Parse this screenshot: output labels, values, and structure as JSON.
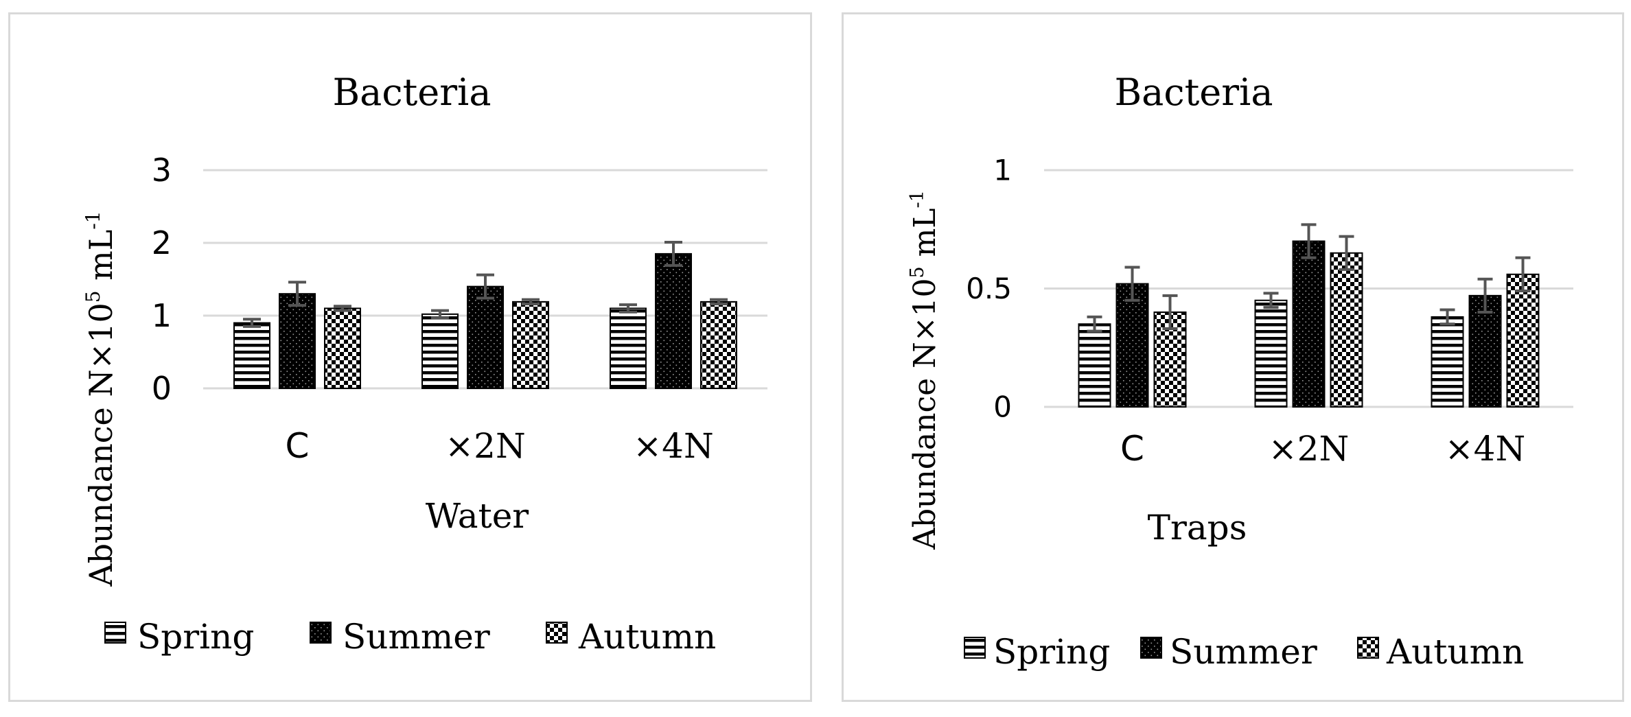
{
  "chart_data": [
    {
      "type": "bar",
      "title": "Bacteria",
      "xlabel": "Water",
      "ylabel": "Abundance N×10",
      "ylabel_sup_exp": "5",
      "ylabel_unit": " mL",
      "ylabel_sup_unit": "-1",
      "categories": [
        "C",
        "×2N",
        "×4N"
      ],
      "ylim": [
        0,
        3
      ],
      "yticks": [
        "0",
        "1",
        "2",
        "3"
      ],
      "grid": true,
      "legend_position": "bottom",
      "series": [
        {
          "name": "Spring",
          "pattern": "horizontal-lines",
          "values": [
            0.9,
            1.02,
            1.1
          ],
          "errors": [
            0.05,
            0.05,
            0.05
          ]
        },
        {
          "name": "Summer",
          "pattern": "dark-dotted",
          "values": [
            1.3,
            1.4,
            1.85
          ],
          "errors": [
            0.16,
            0.16,
            0.16
          ]
        },
        {
          "name": "Autumn",
          "pattern": "checkerboard",
          "values": [
            1.1,
            1.19,
            1.19
          ],
          "errors": [
            0.03,
            0.03,
            0.03
          ]
        }
      ]
    },
    {
      "type": "bar",
      "title": "Bacteria",
      "xlabel": "Traps",
      "ylabel": "Abundance N×10",
      "ylabel_sup_exp": "5",
      "ylabel_unit": " mL",
      "ylabel_sup_unit": "-1",
      "categories": [
        "C",
        "×2N",
        "×4N"
      ],
      "ylim": [
        0,
        1
      ],
      "yticks": [
        "0",
        "0.5",
        "1"
      ],
      "grid": true,
      "legend_position": "bottom",
      "series": [
        {
          "name": "Spring",
          "pattern": "horizontal-lines",
          "values": [
            0.35,
            0.45,
            0.38
          ],
          "errors": [
            0.03,
            0.03,
            0.03
          ]
        },
        {
          "name": "Summer",
          "pattern": "dark-dotted",
          "values": [
            0.52,
            0.7,
            0.47
          ],
          "errors": [
            0.07,
            0.07,
            0.07
          ]
        },
        {
          "name": "Autumn",
          "pattern": "checkerboard",
          "values": [
            0.4,
            0.65,
            0.56
          ],
          "errors": [
            0.07,
            0.07,
            0.07
          ]
        }
      ]
    }
  ],
  "colors": {
    "bar_outline": "#000000",
    "pattern_light": "#ffffff",
    "pattern_dark": "#000000",
    "error_bar": "#555555",
    "gridline": "#d9d9d9",
    "text": "#000000"
  }
}
